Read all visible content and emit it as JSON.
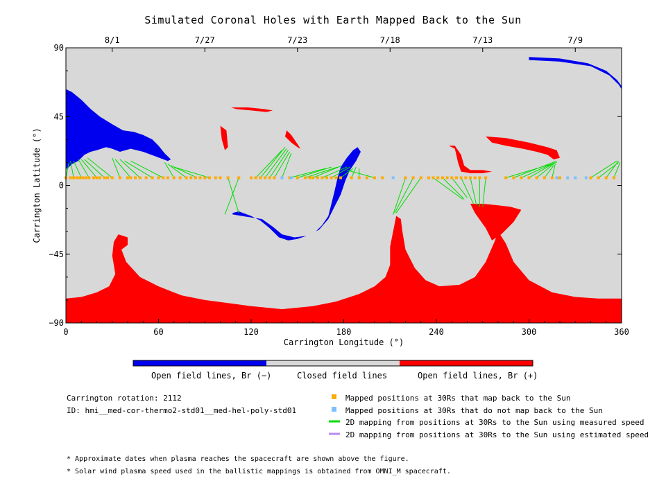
{
  "title": "Simulated Coronal Holes with Earth Mapped Back to the Sun",
  "colors": {
    "background": "#ffffff",
    "closed": "#d8d8d8",
    "open_negative": "#0000ee",
    "open_positive": "#ff0000",
    "mapped_back": "#ffaa00",
    "not_mapped": "#7fbfff",
    "measured_line": "#00dd00",
    "estimated_line": "#bb88ee"
  },
  "chart_data": {
    "type": "map",
    "xlabel": "Carrington Longitude (°)",
    "ylabel": "Carrington Latitude (°)",
    "xlim": [
      0,
      360
    ],
    "ylim": [
      -90,
      90
    ],
    "x_ticks": [
      "0",
      "60",
      "120",
      "180",
      "240",
      "300",
      "360"
    ],
    "x_tick_values": [
      0,
      60,
      120,
      180,
      240,
      300,
      360
    ],
    "y_ticks": [
      "90",
      "45",
      "0",
      "-45",
      "-90"
    ],
    "y_tick_values": [
      90,
      45,
      0,
      -45,
      -90
    ],
    "top_axis_dates": [
      {
        "label": "8/1",
        "lon": 30
      },
      {
        "label": "7/27",
        "lon": 90
      },
      {
        "label": "7/23",
        "lon": 150
      },
      {
        "label": "7/18",
        "lon": 210
      },
      {
        "label": "7/13",
        "lon": 270
      },
      {
        "label": "7/9",
        "lon": 330
      }
    ],
    "legend_colorbar": [
      "Open field lines, Br (−)",
      "Closed field lines",
      "Open field lines, Br (+)"
    ],
    "mapped_points_lat": 5,
    "mapped_points_lon": [
      0,
      3,
      5,
      7,
      9,
      11,
      13,
      15,
      18,
      20,
      22,
      25,
      27,
      30,
      35,
      40,
      42,
      45,
      48,
      52,
      56,
      60,
      63,
      66,
      70,
      74,
      78,
      81,
      84,
      87,
      90,
      93,
      97,
      100,
      105,
      112,
      120,
      123,
      126,
      129,
      132,
      135,
      140,
      145,
      150,
      155,
      158,
      160,
      163,
      166,
      169,
      172,
      175,
      178,
      185,
      190,
      195,
      200,
      205,
      220,
      225,
      230,
      235,
      238,
      241,
      244,
      247,
      250,
      253,
      256,
      259,
      262,
      265,
      268,
      272,
      285,
      290,
      295,
      300,
      305,
      310,
      315,
      320,
      340,
      345,
      350,
      355
    ],
    "unmapped_points_lon": [
      140,
      146,
      212,
      318,
      325,
      330,
      337
    ],
    "footpoint_links": [
      {
        "from_lon": 0,
        "to": [
          2,
          15
        ]
      },
      {
        "from_lon": 5,
        "to": [
          3,
          16
        ]
      },
      {
        "from_lon": 10,
        "to": [
          5,
          16
        ]
      },
      {
        "from_lon": 15,
        "to": [
          8,
          17
        ]
      },
      {
        "from_lon": 20,
        "to": [
          10,
          17
        ]
      },
      {
        "from_lon": 25,
        "to": [
          12,
          17
        ]
      },
      {
        "from_lon": 30,
        "to": [
          14,
          18
        ]
      },
      {
        "from_lon": 35,
        "to": [
          30,
          18
        ]
      },
      {
        "from_lon": 42,
        "to": [
          32,
          17
        ]
      },
      {
        "from_lon": 48,
        "to": [
          35,
          17
        ]
      },
      {
        "from_lon": 56,
        "to": [
          38,
          16
        ]
      },
      {
        "from_lon": 63,
        "to": [
          42,
          16
        ]
      },
      {
        "from_lon": 70,
        "to": [
          64,
          15
        ]
      },
      {
        "from_lon": 78,
        "to": [
          66,
          14
        ]
      },
      {
        "from_lon": 85,
        "to": [
          68,
          13
        ]
      },
      {
        "from_lon": 93,
        "to": [
          70,
          12
        ]
      },
      {
        "from_lon": 105,
        "to": [
          112,
          -18
        ]
      },
      {
        "from_lon": 112,
        "to": [
          103,
          -19
        ]
      },
      {
        "from_lon": 123,
        "to": [
          140,
          23
        ]
      },
      {
        "from_lon": 126,
        "to": [
          142,
          25
        ]
      },
      {
        "from_lon": 129,
        "to": [
          143,
          24
        ]
      },
      {
        "from_lon": 132,
        "to": [
          144,
          23
        ]
      },
      {
        "from_lon": 135,
        "to": [
          145,
          22
        ]
      },
      {
        "from_lon": 140,
        "to": [
          146,
          21
        ]
      },
      {
        "from_lon": 145,
        "to": [
          168,
          11
        ]
      },
      {
        "from_lon": 150,
        "to": [
          172,
          12
        ]
      },
      {
        "from_lon": 155,
        "to": [
          176,
          12
        ]
      },
      {
        "from_lon": 160,
        "to": [
          179,
          13
        ]
      },
      {
        "from_lon": 166,
        "to": [
          182,
          12
        ]
      },
      {
        "from_lon": 172,
        "to": [
          184,
          12
        ]
      },
      {
        "from_lon": 178,
        "to": [
          186,
          11
        ]
      },
      {
        "from_lon": 185,
        "to": [
          188,
          12
        ]
      },
      {
        "from_lon": 190,
        "to": [
          190,
          11
        ]
      },
      {
        "from_lon": 200,
        "to": [
          182,
          10
        ]
      },
      {
        "from_lon": 220,
        "to": [
          212,
          -19
        ]
      },
      {
        "from_lon": 225,
        "to": [
          213,
          -18
        ]
      },
      {
        "from_lon": 230,
        "to": [
          214,
          -18
        ]
      },
      {
        "from_lon": 238,
        "to": [
          257,
          -9
        ]
      },
      {
        "from_lon": 244,
        "to": [
          258,
          -9
        ]
      },
      {
        "from_lon": 250,
        "to": [
          260,
          -8
        ]
      },
      {
        "from_lon": 256,
        "to": [
          264,
          -12
        ]
      },
      {
        "from_lon": 262,
        "to": [
          266,
          -13
        ]
      },
      {
        "from_lon": 268,
        "to": [
          268,
          -14
        ]
      },
      {
        "from_lon": 272,
        "to": [
          270,
          -14
        ]
      },
      {
        "from_lon": 285,
        "to": [
          318,
          15
        ]
      },
      {
        "from_lon": 290,
        "to": [
          318,
          16
        ]
      },
      {
        "from_lon": 295,
        "to": [
          317,
          15
        ]
      },
      {
        "from_lon": 300,
        "to": [
          317,
          15
        ]
      },
      {
        "from_lon": 305,
        "to": [
          316,
          14
        ]
      },
      {
        "from_lon": 310,
        "to": [
          316,
          13
        ]
      },
      {
        "from_lon": 315,
        "to": [
          317,
          14
        ]
      },
      {
        "from_lon": 345,
        "to": [
          358,
          15
        ]
      },
      {
        "from_lon": 350,
        "to": [
          358,
          16
        ]
      },
      {
        "from_lon": 355,
        "to": [
          359,
          15
        ]
      },
      {
        "from_lon": 340,
        "to": [
          357,
          16
        ]
      }
    ],
    "regions": [
      {
        "polarity": "negative",
        "name": "north-west-hole",
        "outline": [
          [
            0,
            63
          ],
          [
            4,
            61
          ],
          [
            10,
            56
          ],
          [
            16,
            50
          ],
          [
            22,
            45
          ],
          [
            30,
            40
          ],
          [
            37,
            36
          ],
          [
            44,
            35
          ],
          [
            50,
            33
          ],
          [
            56,
            30
          ],
          [
            60,
            26
          ],
          [
            64,
            21
          ],
          [
            68,
            17
          ],
          [
            66,
            16
          ],
          [
            58,
            19
          ],
          [
            50,
            22
          ],
          [
            42,
            24
          ],
          [
            35,
            22
          ],
          [
            30,
            24
          ],
          [
            26,
            25
          ],
          [
            20,
            23
          ],
          [
            16,
            22
          ],
          [
            12,
            20
          ],
          [
            8,
            16
          ],
          [
            4,
            14
          ],
          [
            1,
            11
          ],
          [
            0,
            11
          ]
        ]
      },
      {
        "polarity": "negative",
        "name": "center-hole",
        "outline": [
          [
            108,
            -18
          ],
          [
            112,
            -17
          ],
          [
            120,
            -20
          ],
          [
            126,
            -23
          ],
          [
            132,
            -28
          ],
          [
            138,
            -34
          ],
          [
            144,
            -36
          ],
          [
            150,
            -35
          ],
          [
            156,
            -33
          ],
          [
            162,
            -30
          ],
          [
            166,
            -26
          ],
          [
            170,
            -20
          ],
          [
            172,
            -12
          ],
          [
            174,
            -4
          ],
          [
            176,
            5
          ],
          [
            178,
            12
          ],
          [
            182,
            18
          ],
          [
            186,
            23
          ],
          [
            189,
            25
          ],
          [
            191,
            22
          ],
          [
            188,
            16
          ],
          [
            184,
            10
          ],
          [
            181,
            3
          ],
          [
            178,
            -6
          ],
          [
            174,
            -14
          ],
          [
            170,
            -22
          ],
          [
            164,
            -29
          ],
          [
            156,
            -33
          ],
          [
            148,
            -34
          ],
          [
            140,
            -32
          ],
          [
            134,
            -27
          ],
          [
            127,
            -22
          ],
          [
            120,
            -21
          ],
          [
            114,
            -20
          ],
          [
            108,
            -19
          ]
        ]
      },
      {
        "polarity": "negative",
        "name": "north-east-arc",
        "outline": [
          [
            300,
            82
          ],
          [
            320,
            81
          ],
          [
            340,
            78
          ],
          [
            352,
            72
          ],
          [
            358,
            66
          ],
          [
            360,
            63
          ],
          [
            360,
            65
          ],
          [
            357,
            69
          ],
          [
            350,
            75
          ],
          [
            338,
            80
          ],
          [
            320,
            83
          ],
          [
            300,
            84
          ]
        ]
      },
      {
        "polarity": "positive",
        "name": "south-polar-cap",
        "outline": [
          [
            0,
            -90
          ],
          [
            0,
            -74
          ],
          [
            10,
            -73
          ],
          [
            20,
            -70
          ],
          [
            28,
            -66
          ],
          [
            32,
            -58
          ],
          [
            30,
            -46
          ],
          [
            31,
            -37
          ],
          [
            34,
            -32
          ],
          [
            40,
            -34
          ],
          [
            40,
            -39
          ],
          [
            36,
            -42
          ],
          [
            39,
            -50
          ],
          [
            48,
            -60
          ],
          [
            60,
            -66
          ],
          [
            75,
            -72
          ],
          [
            90,
            -75
          ],
          [
            105,
            -77
          ],
          [
            120,
            -79
          ],
          [
            140,
            -81
          ],
          [
            160,
            -79
          ],
          [
            175,
            -76
          ],
          [
            190,
            -71
          ],
          [
            200,
            -66
          ],
          [
            207,
            -60
          ],
          [
            210,
            -52
          ],
          [
            210,
            -40
          ],
          [
            212,
            -30
          ],
          [
            214,
            -20
          ],
          [
            217,
            -22
          ],
          [
            218,
            -30
          ],
          [
            220,
            -42
          ],
          [
            226,
            -54
          ],
          [
            233,
            -62
          ],
          [
            242,
            -66
          ],
          [
            255,
            -65
          ],
          [
            265,
            -60
          ],
          [
            272,
            -50
          ],
          [
            275,
            -43
          ],
          [
            278,
            -36
          ],
          [
            280,
            -30
          ],
          [
            285,
            -38
          ],
          [
            290,
            -50
          ],
          [
            300,
            -62
          ],
          [
            315,
            -70
          ],
          [
            330,
            -73
          ],
          [
            345,
            -74
          ],
          [
            360,
            -74
          ],
          [
            360,
            -90
          ]
        ]
      },
      {
        "polarity": "positive",
        "name": "center-south-lobe",
        "outline": [
          [
            262,
            -12
          ],
          [
            265,
            -18
          ],
          [
            272,
            -28
          ],
          [
            276,
            -36
          ],
          [
            282,
            -32
          ],
          [
            290,
            -24
          ],
          [
            295,
            -16
          ],
          [
            288,
            -14
          ],
          [
            280,
            -13
          ],
          [
            270,
            -12
          ]
        ]
      },
      {
        "polarity": "positive",
        "name": "center-north-lobe",
        "outline": [
          [
            248,
            26
          ],
          [
            252,
            24
          ],
          [
            254,
            15
          ],
          [
            256,
            9
          ],
          [
            262,
            8
          ],
          [
            270,
            8
          ],
          [
            276,
            9
          ],
          [
            270,
            10
          ],
          [
            262,
            10
          ],
          [
            258,
            13
          ],
          [
            256,
            20
          ],
          [
            252,
            26
          ]
        ]
      },
      {
        "polarity": "positive",
        "name": "east-streak",
        "outline": [
          [
            272,
            32
          ],
          [
            285,
            31
          ],
          [
            300,
            28
          ],
          [
            312,
            25
          ],
          [
            318,
            23
          ],
          [
            320,
            18
          ],
          [
            316,
            17
          ],
          [
            312,
            20
          ],
          [
            305,
            22
          ],
          [
            296,
            24
          ],
          [
            285,
            26
          ],
          [
            276,
            28
          ]
        ]
      },
      {
        "polarity": "positive",
        "name": "center-top-patch",
        "outline": [
          [
            107,
            51
          ],
          [
            118,
            51
          ],
          [
            128,
            50
          ],
          [
            134,
            49
          ],
          [
            130,
            48
          ],
          [
            120,
            49
          ],
          [
            110,
            50
          ]
        ]
      },
      {
        "polarity": "positive",
        "name": "center-mid-patch",
        "outline": [
          [
            143,
            36
          ],
          [
            146,
            33
          ],
          [
            150,
            27
          ],
          [
            152,
            24
          ],
          [
            150,
            25
          ],
          [
            146,
            28
          ],
          [
            142,
            32
          ]
        ]
      },
      {
        "polarity": "positive",
        "name": "west-thin-patch",
        "outline": [
          [
            100,
            39
          ],
          [
            104,
            36
          ],
          [
            105,
            25
          ],
          [
            103,
            23
          ],
          [
            101,
            30
          ]
        ]
      }
    ]
  },
  "info": {
    "rotation": "Carrington rotation: 2112",
    "id": "ID: hmi__med-cor-thermo2-std01__med-hel-poly-std01"
  },
  "legend": [
    {
      "kind": "square",
      "color": "mapped_back",
      "label": "Mapped positions at 30Rs that map back to the Sun"
    },
    {
      "kind": "square",
      "color": "not_mapped",
      "label": "Mapped positions at 30Rs that do not map back to the Sun"
    },
    {
      "kind": "line",
      "color": "measured_line",
      "label": "2D mapping from positions at 30Rs to the Sun using measured speed"
    },
    {
      "kind": "line",
      "color": "estimated_line",
      "label": "2D mapping from positions at 30Rs to the Sun using estimated speed"
    }
  ],
  "notes": [
    "* Approximate dates when plasma reaches the spacecraft are shown above the figure.",
    "* Solar wind plasma speed used in the ballistic mappings is obtained from OMNI_M spacecraft."
  ]
}
